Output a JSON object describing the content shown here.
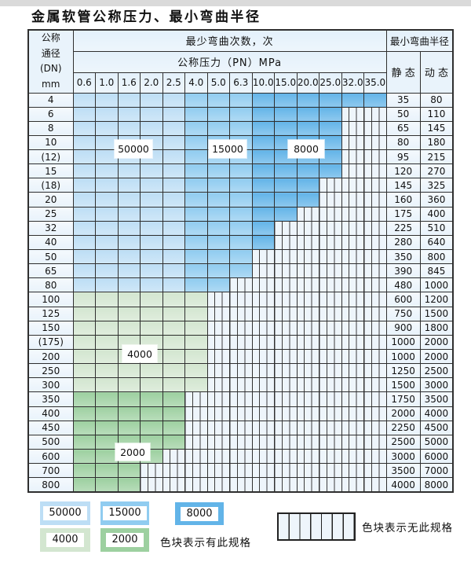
{
  "page": {
    "title": "金属软管公称压力、最小弯曲半径"
  },
  "colors": {
    "blue_light": "#bddef5",
    "blue_medium": "#90ccf0",
    "blue_dark": "#62b4e8",
    "green_light": "#d3e6d0",
    "green_dark": "#9dd0a0",
    "hatch_bg": "#eef5fb",
    "label_bg": "#e9f3fb",
    "header_bg": "#dfeefa",
    "border": "#2f2f2f"
  },
  "table": {
    "header": {
      "dn_lines": [
        "公称",
        "通径",
        "(DN)",
        "mm"
      ],
      "bend_cycles_label": "最少弯曲次数，次",
      "pressure_label": "公称压力（PN）MPa",
      "pressure_columns": [
        "0.6",
        "1.0",
        "1.6",
        "2.0",
        "2.5",
        "4.0",
        "5.0",
        "6.3",
        "10.0",
        "15.0",
        "20.0",
        "25.0",
        "32.0",
        "35.0"
      ],
      "min_radius_label": "最小弯曲半径",
      "static_label": "静 态",
      "dynamic_label": "动 态"
    },
    "region_labels": [
      {
        "text": "50000"
      },
      {
        "text": "15000"
      },
      {
        "text": "8000"
      },
      {
        "text": "4000"
      },
      {
        "text": "2000"
      }
    ],
    "rows": [
      {
        "dn": "4",
        "available": 14,
        "group": "blue",
        "static": "35",
        "dynamic": "80"
      },
      {
        "dn": "6",
        "available": 12,
        "group": "blue",
        "static": "50",
        "dynamic": "110"
      },
      {
        "dn": "8",
        "available": 12,
        "group": "blue",
        "static": "65",
        "dynamic": "145"
      },
      {
        "dn": "10",
        "available": 12,
        "group": "blue",
        "static": "80",
        "dynamic": "180"
      },
      {
        "dn": "(12)",
        "available": 12,
        "group": "blue",
        "static": "95",
        "dynamic": "215"
      },
      {
        "dn": "15",
        "available": 12,
        "group": "blue",
        "static": "120",
        "dynamic": "270"
      },
      {
        "dn": "(18)",
        "available": 11,
        "group": "blue",
        "static": "145",
        "dynamic": "325"
      },
      {
        "dn": "20",
        "available": 11,
        "group": "blue",
        "static": "160",
        "dynamic": "360"
      },
      {
        "dn": "25",
        "available": 10,
        "group": "blue",
        "static": "175",
        "dynamic": "400"
      },
      {
        "dn": "32",
        "available": 9,
        "group": "blue",
        "static": "225",
        "dynamic": "510"
      },
      {
        "dn": "40",
        "available": 9,
        "group": "blue",
        "static": "280",
        "dynamic": "640"
      },
      {
        "dn": "50",
        "available": 8,
        "group": "blue",
        "static": "350",
        "dynamic": "800"
      },
      {
        "dn": "65",
        "available": 8,
        "group": "blue",
        "static": "390",
        "dynamic": "845"
      },
      {
        "dn": "80",
        "available": 7,
        "group": "blue",
        "static": "480",
        "dynamic": "1000"
      },
      {
        "dn": "100",
        "available": 6,
        "group": "green_light",
        "static": "600",
        "dynamic": "1200"
      },
      {
        "dn": "125",
        "available": 6,
        "group": "green_light",
        "static": "750",
        "dynamic": "1500"
      },
      {
        "dn": "150",
        "available": 6,
        "group": "green_light",
        "static": "900",
        "dynamic": "1800"
      },
      {
        "dn": "(175)",
        "available": 6,
        "group": "green_light",
        "static": "1000",
        "dynamic": "2000"
      },
      {
        "dn": "200",
        "available": 6,
        "group": "green_light",
        "static": "1000",
        "dynamic": "2000"
      },
      {
        "dn": "250",
        "available": 6,
        "group": "green_light",
        "static": "1250",
        "dynamic": "2500"
      },
      {
        "dn": "300",
        "available": 6,
        "group": "green_light",
        "static": "1500",
        "dynamic": "3000"
      },
      {
        "dn": "350",
        "available": 5,
        "group": "green_dark",
        "static": "1750",
        "dynamic": "3500"
      },
      {
        "dn": "400",
        "available": 5,
        "group": "green_dark",
        "static": "2000",
        "dynamic": "4000"
      },
      {
        "dn": "450",
        "available": 5,
        "group": "green_dark",
        "static": "2250",
        "dynamic": "4500"
      },
      {
        "dn": "500",
        "available": 5,
        "group": "green_dark",
        "static": "2500",
        "dynamic": "5000"
      },
      {
        "dn": "600",
        "available": 4,
        "group": "green_dark",
        "static": "3000",
        "dynamic": "6000"
      },
      {
        "dn": "700",
        "available": 3,
        "group": "green_dark",
        "static": "3500",
        "dynamic": "7000"
      },
      {
        "dn": "800",
        "available": 3,
        "group": "green_dark",
        "static": "4000",
        "dynamic": "8000"
      }
    ]
  },
  "legend": {
    "swatches": [
      {
        "label": "50000",
        "color": "blue_light"
      },
      {
        "label": "15000",
        "color": "blue_medium"
      },
      {
        "label": "8000",
        "color": "blue_dark"
      },
      {
        "label": "4000",
        "color": "green_light"
      },
      {
        "label": "2000",
        "color": "green_dark"
      }
    ],
    "has_spec_text": "色块表示有此规格",
    "no_spec_text": "色块表示无此规格"
  }
}
